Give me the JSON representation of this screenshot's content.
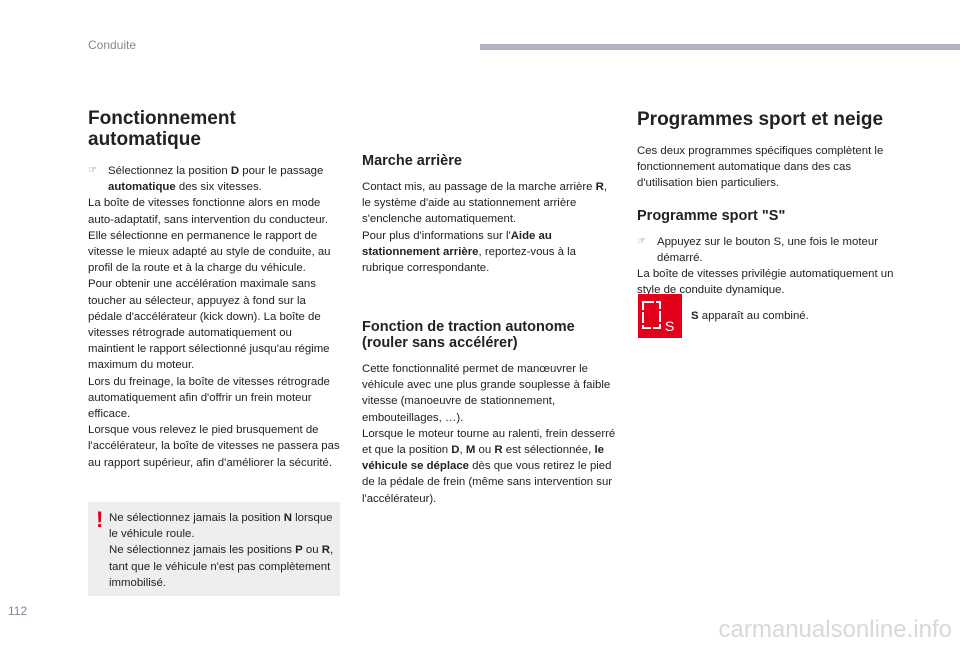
{
  "header": {
    "section": "Conduite",
    "page_number": "112"
  },
  "left": {
    "title": "Fonctionnement automatique",
    "bullet": {
      "a": "Sélectionnez la position ",
      "b": "D",
      "c": " pour le passage ",
      "d": "automatique",
      "e": " des six vitesses."
    },
    "p1": "La boîte de vitesses fonctionne alors en mode auto-adaptatif, sans intervention du conducteur. Elle sélectionne en permanence le rapport de vitesse le mieux adapté au style de conduite, au profil de la route et à la charge du véhicule.",
    "p2": "Pour obtenir une accélération maximale sans toucher au sélecteur, appuyez à fond sur la pédale d'accélérateur (kick down). La boîte de vitesses rétrograde automatiquement ou maintient le rapport sélectionné jusqu'au régime maximum du moteur.",
    "p3": "Lors du freinage, la boîte de vitesses rétrograde automatiquement afin d'offrir un frein moteur efficace.",
    "p4": "Lorsque vous relevez le pied brusquement de l'accélérateur, la boîte de vitesses ne passera pas au rapport supérieur, afin d'améliorer la sécurité.",
    "warning": {
      "a": "Ne sélectionnez jamais la position ",
      "b": "N",
      "c": " lorsque le véhicule roule.",
      "d": "Ne sélectionnez jamais les positions ",
      "e": "P",
      "f": " ou ",
      "g": "R",
      "h": ", tant que le véhicule n'est pas complètement immobilisé."
    }
  },
  "middle": {
    "reverse_title": "Marche arrière",
    "reverse": {
      "a": "Contact mis, au passage de la marche arrière ",
      "b": "R",
      "c": ", le système d'aide au stationnement arrière s'enclenche automatiquement.",
      "d": "Pour plus d'informations sur l'",
      "e": "Aide au stationnement arrière",
      "f": ", reportez-vous à la rubrique correspondante."
    },
    "creep_title": "Fonction de traction autonome (rouler sans accélérer)",
    "creep_p1": "Cette fonctionnalité permet de manœuvrer le véhicule avec une plus grande souplesse à faible vitesse (manoeuvre de stationnement, embouteillages, …).",
    "creep": {
      "a": "Lorsque le moteur tourne au ralenti, frein desserré et que la position ",
      "b": "D",
      "c": ", ",
      "d": "M",
      "e": " ou ",
      "f": "R",
      "g": " est sélectionnée, ",
      "h": "le véhicule se déplace",
      "i": " dès que vous retirez le pied de la pédale de frein (même sans intervention sur l'accélérateur)."
    }
  },
  "right": {
    "title": "Programmes sport et neige",
    "intro": "Ces deux programmes spécifiques complètent le fonctionnement automatique dans des cas d'utilisation bien particuliers.",
    "sport_title": "Programme sport \"S\"",
    "sport_bullet": "Appuyez sur le bouton S, une fois le moteur démarré.",
    "sport_p": "La boîte de vitesses privilégie automatiquement un style de conduite dynamique.",
    "display": {
      "a": "S",
      "b": " apparaît au combiné",
      "c": ".",
      "icon_letter": "S"
    }
  },
  "colors": {
    "accent_red": "#e3001b",
    "header_bar": "#b9b1c3",
    "warning_bg": "#eeeeee"
  },
  "watermark": "carmanualsonline.info"
}
